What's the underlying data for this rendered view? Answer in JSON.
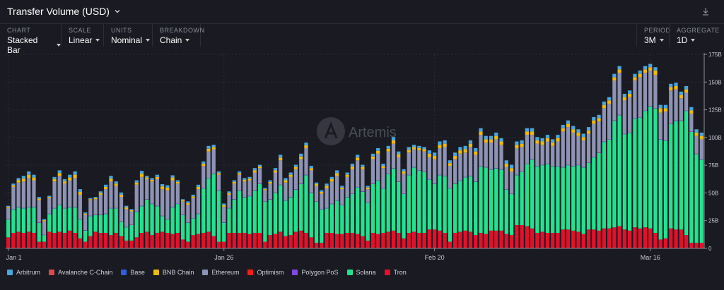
{
  "header": {
    "title": "Transfer Volume (USD)"
  },
  "controls": {
    "chart": {
      "label": "CHART",
      "value": "Stacked Bar"
    },
    "scale": {
      "label": "SCALE",
      "value": "Linear"
    },
    "units": {
      "label": "UNITS",
      "value": "Nominal"
    },
    "breakdown": {
      "label": "BREAKDOWN",
      "value": "Chain"
    },
    "period": {
      "label": "PERIOD",
      "value": "3M"
    },
    "aggregate": {
      "label": "AGGREGATE",
      "value": "1D"
    }
  },
  "watermark": "Artemis",
  "colors": {
    "Arbitrum": "#4aa6dd",
    "Avalanche C-Chain": "#d94a4a",
    "Base": "#2f5de0",
    "BNB Chain": "#f0b90b",
    "Ethereum": "#8e93b3",
    "Optimism": "#ff1a1a",
    "Polygon PoS": "#8247e5",
    "Solana": "#23e28f",
    "Tron": "#e4102b"
  },
  "chart_data": {
    "type": "bar",
    "stacked": true,
    "ylim": [
      0,
      175
    ],
    "yticks": [
      "0",
      "25B",
      "50B",
      "75B",
      "100B",
      "125B",
      "150B",
      "175B"
    ],
    "xtick_labels": [
      {
        "index": 0,
        "label": "Jan 1"
      },
      {
        "index": 42,
        "label": "Jan 26"
      },
      {
        "index": 83,
        "label": "Feb 20"
      },
      {
        "index": 125,
        "label": "Mar 16"
      }
    ],
    "legend": [
      "Arbitrum",
      "Avalanche C-Chain",
      "Base",
      "BNB Chain",
      "Ethereum",
      "Optimism",
      "Polygon PoS",
      "Solana",
      "Tron"
    ],
    "legend_position": "bottom-left",
    "gridlines": true,
    "series": [
      {
        "name": "Tron",
        "values": [
          10,
          14,
          15,
          14,
          15,
          14,
          6,
          6,
          15,
          14,
          15,
          14,
          16,
          14,
          9,
          6,
          11,
          15,
          14,
          14,
          12,
          14,
          11,
          7,
          7,
          10,
          14,
          15,
          12,
          14,
          15,
          14,
          13,
          14,
          8,
          6,
          12,
          13,
          14,
          15,
          11,
          6,
          6,
          14,
          14,
          14,
          14,
          13,
          14,
          14,
          6,
          12,
          13,
          15,
          11,
          12,
          15,
          16,
          14,
          10,
          5,
          5,
          14,
          14,
          13,
          13,
          14,
          14,
          13,
          11,
          7,
          14,
          13,
          14,
          15,
          16,
          14,
          9,
          14,
          15,
          14,
          14,
          17,
          17,
          16,
          14,
          6,
          14,
          15,
          16,
          15,
          12,
          14,
          13,
          16,
          16,
          16,
          13,
          12,
          21,
          21,
          20,
          18,
          14,
          15,
          14,
          14,
          14,
          17,
          17,
          16,
          15,
          13,
          17,
          17,
          16,
          18,
          18,
          19,
          20,
          17,
          16,
          19,
          18,
          19,
          18,
          14,
          8,
          9,
          18,
          17,
          17,
          12,
          5,
          5,
          5
        ]
      },
      {
        "name": "Solana",
        "values": [
          16,
          21,
          22,
          22,
          22,
          23,
          17,
          6,
          16,
          22,
          24,
          22,
          21,
          23,
          17,
          10,
          18,
          15,
          16,
          17,
          24,
          22,
          13,
          12,
          14,
          23,
          24,
          29,
          28,
          24,
          14,
          12,
          24,
          26,
          22,
          17,
          15,
          18,
          40,
          48,
          56,
          46,
          17,
          22,
          30,
          38,
          32,
          34,
          38,
          44,
          36,
          32,
          37,
          42,
          32,
          34,
          38,
          42,
          52,
          40,
          37,
          30,
          22,
          26,
          30,
          26,
          32,
          35,
          42,
          40,
          34,
          44,
          48,
          40,
          52,
          56,
          46,
          40,
          52,
          58,
          56,
          55,
          45,
          41,
          50,
          51,
          48,
          44,
          46,
          48,
          50,
          48,
          60,
          60,
          55,
          56,
          55,
          40,
          37,
          45,
          48,
          56,
          62,
          60,
          60,
          62,
          60,
          60,
          56,
          58,
          58,
          60,
          60,
          60,
          65,
          70,
          78,
          80,
          96,
          100,
          86,
          88,
          98,
          100,
          105,
          110,
          112,
          90,
          88,
          94,
          98,
          98,
          112,
          100,
          80,
          75
        ]
      },
      {
        "name": "Polygon PoS",
        "values": [
          0.4,
          0.4,
          0.4,
          0.4,
          0.4,
          0.4,
          0.4,
          0.4,
          0.4,
          0.4,
          0.4,
          0.4,
          0.4,
          0.4,
          0.4,
          0.4,
          0.4,
          0.4,
          0.4,
          0.4,
          0.4,
          0.4,
          0.4,
          0.4,
          0.4,
          0.4,
          0.4,
          0.4,
          0.4,
          0.4,
          0.4,
          0.4,
          0.4,
          0.4,
          0.4,
          0.4,
          0.4,
          0.4,
          0.4,
          0.4,
          0.4,
          0.4,
          0.4,
          0.4,
          0.4,
          0.4,
          0.4,
          0.4,
          0.4,
          0.4,
          0.4,
          0.4,
          0.4,
          0.4,
          0.4,
          0.4,
          0.4,
          0.4,
          0.4,
          0.4,
          0.4,
          0.4,
          0.4,
          0.4,
          0.4,
          0.4,
          0.4,
          0.4,
          0.4,
          0.4,
          0.4,
          0.4,
          0.4,
          0.4,
          0.4,
          0.4,
          0.4,
          0.4,
          0.4,
          0.4,
          0.4,
          0.4,
          0.4,
          0.4,
          0.4,
          0.4,
          0.4,
          0.4,
          0.4,
          0.4,
          0.4,
          0.4,
          0.4,
          0.4,
          0.4,
          0.4,
          0.4,
          0.4,
          0.4,
          0.4,
          0.4,
          0.4,
          0.4,
          0.4,
          0.4,
          0.4,
          0.4,
          0.4,
          0.4,
          0.4,
          0.4,
          0.4,
          0.4,
          0.4,
          0.4,
          0.4,
          0.4,
          0.4,
          0.4,
          0.4,
          0.4,
          0.4,
          0.4,
          0.4,
          0.4,
          0.4,
          0.4,
          0.4,
          0.4,
          0.4,
          0.4,
          0.4,
          0.4,
          0.4,
          0.4,
          0.4
        ]
      },
      {
        "name": "Ethereum",
        "values": [
          10,
          20,
          22,
          24,
          26,
          24,
          20,
          12,
          14,
          24,
          26,
          22,
          24,
          26,
          22,
          14,
          14,
          14,
          18,
          22,
          24,
          20,
          22,
          16,
          12,
          24,
          26,
          18,
          20,
          24,
          24,
          26,
          24,
          18,
          12,
          16,
          18,
          22,
          20,
          24,
          22,
          14,
          14,
          12,
          14,
          14,
          14,
          14,
          16,
          14,
          10,
          14,
          18,
          22,
          16,
          18,
          18,
          22,
          24,
          20,
          14,
          14,
          18,
          20,
          22,
          14,
          18,
          22,
          24,
          20,
          12,
          22,
          24,
          18,
          20,
          22,
          22,
          18,
          20,
          16,
          18,
          18,
          20,
          22,
          24,
          26,
          20,
          22,
          24,
          22,
          26,
          24,
          28,
          22,
          24,
          26,
          22,
          20,
          20,
          24,
          22,
          26,
          22,
          20,
          18,
          20,
          18,
          22,
          32,
          34,
          30,
          26,
          24,
          26,
          30,
          28,
          30,
          32,
          36,
          38,
          30,
          32,
          34,
          36,
          34,
          32,
          30,
          24,
          26,
          30,
          28,
          20,
          16,
          16,
          16,
          18
        ]
      },
      {
        "name": "BNB Chain",
        "values": [
          1,
          1.5,
          2,
          2.5,
          3,
          2.5,
          1.5,
          1,
          1,
          2,
          2.5,
          2,
          2.5,
          3,
          2.5,
          1,
          1,
          1,
          1.5,
          2,
          2.5,
          2,
          2,
          1.5,
          1,
          2,
          3,
          1.5,
          1.5,
          2,
          2.5,
          2.5,
          2.5,
          1.5,
          1,
          1.5,
          1.5,
          2,
          2,
          2.5,
          2,
          1.5,
          1.5,
          1.5,
          1.5,
          1.5,
          1.5,
          1.5,
          2,
          1.5,
          1,
          1.5,
          2,
          2.5,
          2,
          2,
          2,
          2.5,
          2.5,
          2,
          1.5,
          1.5,
          2,
          2,
          2.5,
          1.5,
          2,
          2.5,
          2.5,
          2,
          1.5,
          2.5,
          2.5,
          2,
          2.5,
          3,
          2.5,
          2,
          2.5,
          2,
          2,
          2,
          3,
          3,
          3,
          3,
          2.5,
          3,
          3,
          3,
          3,
          3,
          3,
          3,
          3,
          3,
          3,
          3,
          3,
          3,
          3,
          3,
          3,
          3,
          3,
          3,
          3,
          3,
          3,
          3,
          3,
          3,
          3,
          3,
          3,
          3,
          3,
          3,
          3,
          3,
          3,
          3,
          3,
          3,
          3,
          3,
          4,
          4,
          3,
          3,
          3,
          3,
          3,
          3,
          3,
          3,
          3,
          3
        ]
      },
      {
        "name": "Arbitrum",
        "values": [
          1,
          1.5,
          2,
          2.5,
          3,
          2.5,
          1.5,
          1,
          1,
          2,
          2.5,
          2,
          2.5,
          3,
          2.5,
          1,
          1,
          1,
          1.5,
          2,
          2.5,
          2,
          2,
          1.5,
          1,
          2,
          2.5,
          1.5,
          1.5,
          2,
          2,
          2,
          2,
          1.5,
          1,
          1.5,
          1.5,
          2,
          2,
          2.5,
          2,
          1.5,
          1.5,
          1.5,
          1.5,
          1.5,
          1.5,
          1.5,
          2,
          1.5,
          1,
          1.5,
          2,
          2.5,
          2,
          2,
          2,
          2.5,
          2.5,
          2,
          1.5,
          1.5,
          2,
          2,
          2.5,
          1.5,
          2,
          2.5,
          2.5,
          2,
          1.5,
          2.5,
          2.5,
          2,
          2.5,
          3,
          2.5,
          2,
          2.5,
          2,
          2,
          2,
          3,
          3,
          3,
          3,
          2.5,
          3,
          3,
          3,
          3,
          3,
          3,
          3,
          3,
          3,
          3,
          3,
          3,
          3,
          3,
          3,
          3,
          3,
          3,
          3,
          3,
          3,
          3,
          3,
          3,
          3,
          3,
          3,
          3,
          3,
          3,
          3,
          3,
          3,
          3,
          3,
          3,
          3,
          3,
          3,
          3,
          3,
          3,
          3,
          3,
          3,
          3,
          3,
          3,
          3,
          3,
          3
        ]
      }
    ]
  }
}
